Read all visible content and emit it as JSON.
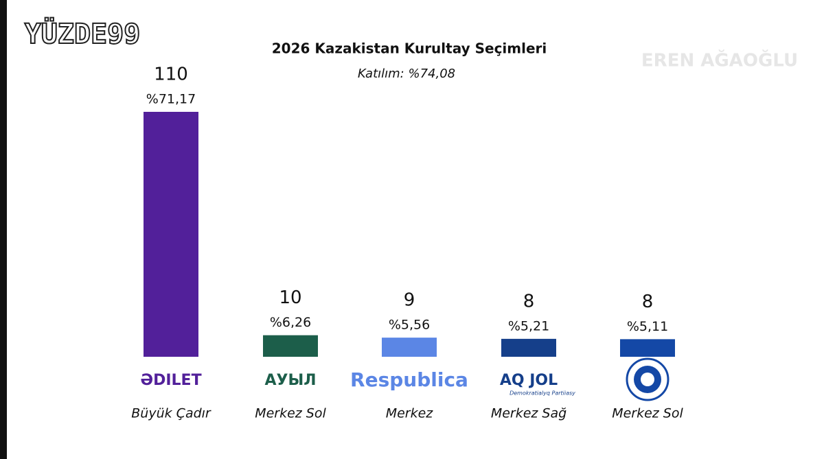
{
  "chart_data": {
    "type": "bar",
    "title": "2026 Kazakistan Kurultay Seçimleri",
    "subtitle": "Katılım: %74,08",
    "brand": "YÜZDE99",
    "author": "EREN AĞAOĞLU",
    "categories": [
      "ƏDILET",
      "АУЫЛ",
      "Respublica",
      "AQ JOL",
      null
    ],
    "category_tagline": "Demokratialyq Partiiasy",
    "ideologies": [
      "Büyük Çadır",
      "Merkez Sol",
      "Merkez",
      "Merkez Sağ",
      "Merkez Sol"
    ],
    "seats": [
      110,
      10,
      9,
      8,
      8
    ],
    "values": [
      71.17,
      6.26,
      5.56,
      5.21,
      5.11
    ],
    "value_labels": [
      "%71,17",
      "%6,26",
      "%5,56",
      "%5,21",
      "%5,11"
    ],
    "colors": [
      "#52209a",
      "#1c5e4a",
      "#5b86e5",
      "#153f8a",
      "#1448a6"
    ]
  }
}
